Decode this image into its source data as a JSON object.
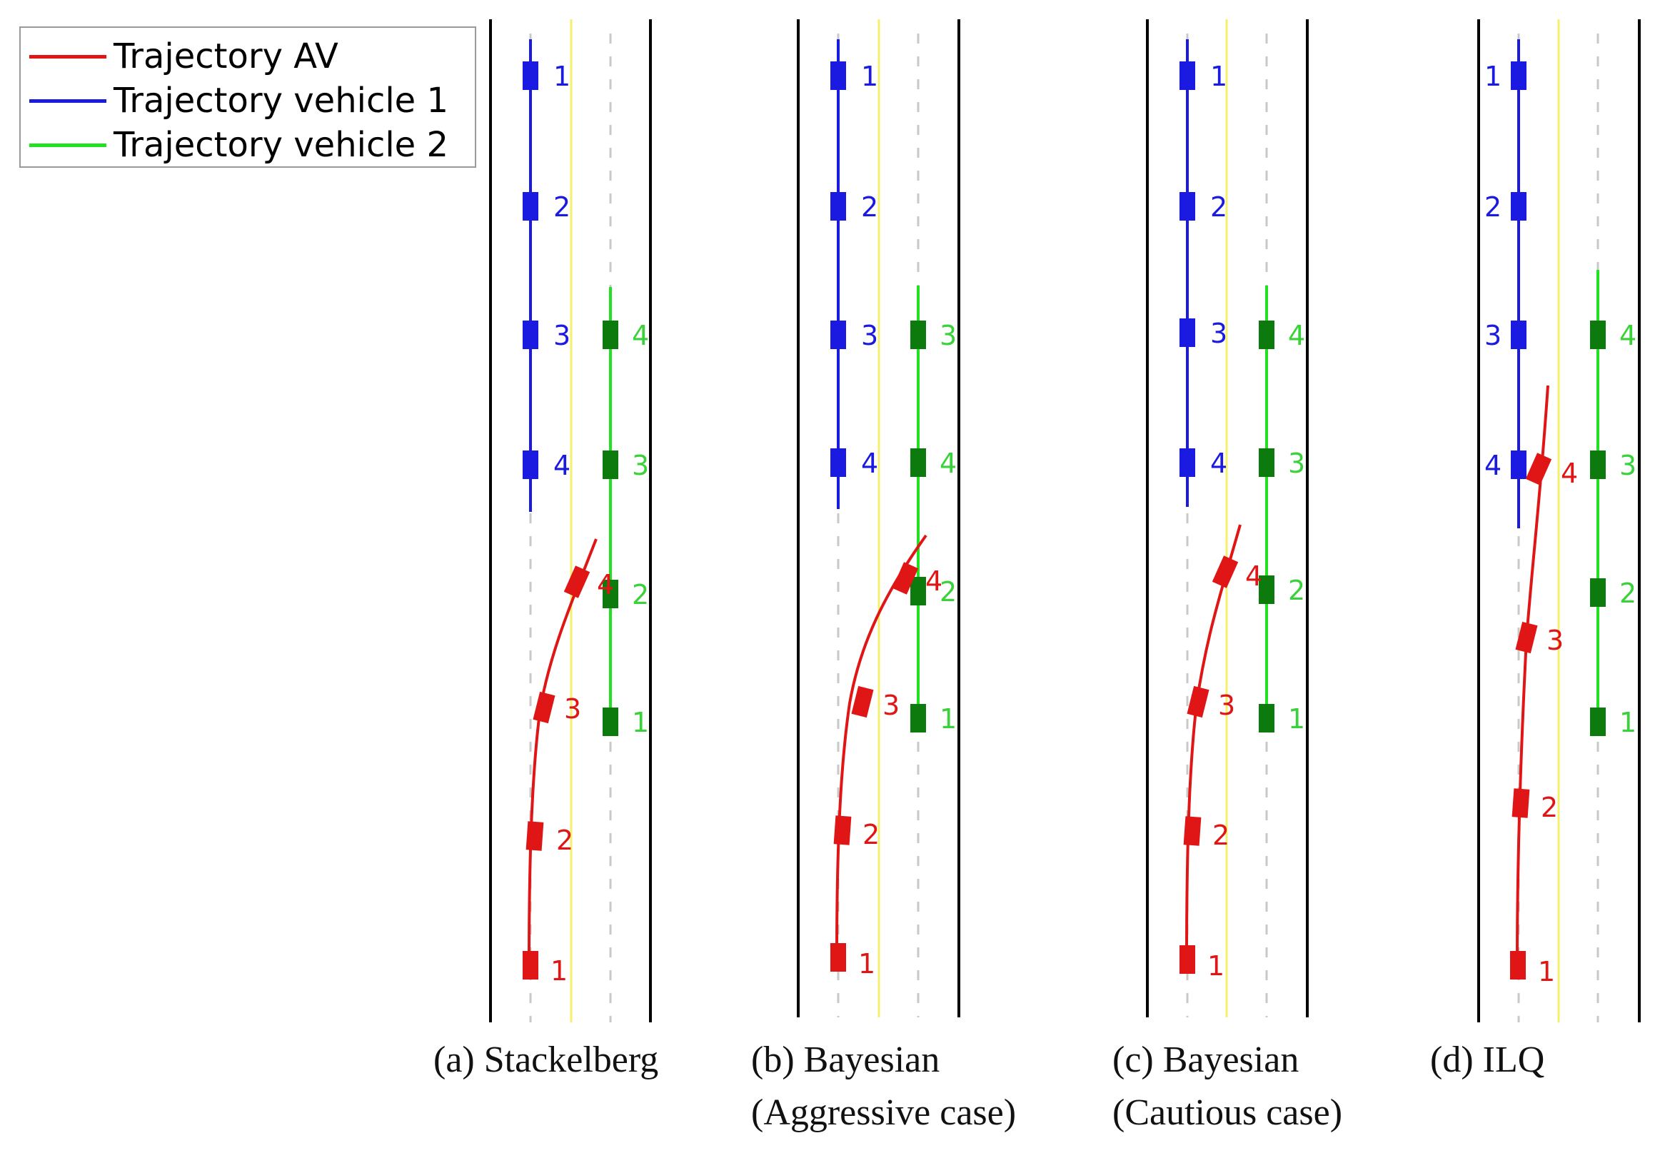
{
  "legend": [
    {
      "label": "Trajectory AV",
      "color": "#e01515"
    },
    {
      "label": "Trajectory vehicle 1",
      "color": "#1a1ae0"
    },
    {
      "label": "Trajectory vehicle 2",
      "color": "#22e022"
    }
  ],
  "colors": {
    "av": "#e01515",
    "vehicle1": "#1a1ae0",
    "vehicle2_line": "#22e022",
    "vehicle2_box": "#0d7a0d",
    "vehicle2_label": "#3ad23a",
    "center_line": "#f5f06a",
    "lane_dash": "#c8c8c8",
    "road_edge": "#000000"
  },
  "panels": [
    {
      "caption_lines": [
        "(a) Stackelberg"
      ],
      "vehicle1_labels": [
        "1",
        "2",
        "3",
        "4"
      ],
      "vehicle2_labels": [
        "1",
        "2",
        "3",
        "4"
      ],
      "av_labels": [
        "1",
        "2",
        "3",
        "4"
      ]
    },
    {
      "caption_lines": [
        "(b) Bayesian",
        "(Aggressive case)"
      ],
      "vehicle1_labels": [
        "1",
        "2",
        "3",
        "4"
      ],
      "vehicle2_labels": [
        "1",
        "2",
        "3",
        "4"
      ],
      "av_labels": [
        "1",
        "2",
        "3",
        "4"
      ]
    },
    {
      "caption_lines": [
        "(c) Bayesian",
        "(Cautious case)"
      ],
      "vehicle1_labels": [
        "1",
        "2",
        "3",
        "4"
      ],
      "vehicle2_labels": [
        "1",
        "2",
        "3",
        "4"
      ],
      "av_labels": [
        "1",
        "2",
        "3",
        "4"
      ]
    },
    {
      "caption_lines": [
        "(d) ILQ"
      ],
      "vehicle1_labels": [
        "1",
        "2",
        "3",
        "4"
      ],
      "vehicle2_labels": [
        "1",
        "2",
        "3",
        "4"
      ],
      "av_labels": [
        "1",
        "2",
        "3",
        "4"
      ]
    }
  ]
}
